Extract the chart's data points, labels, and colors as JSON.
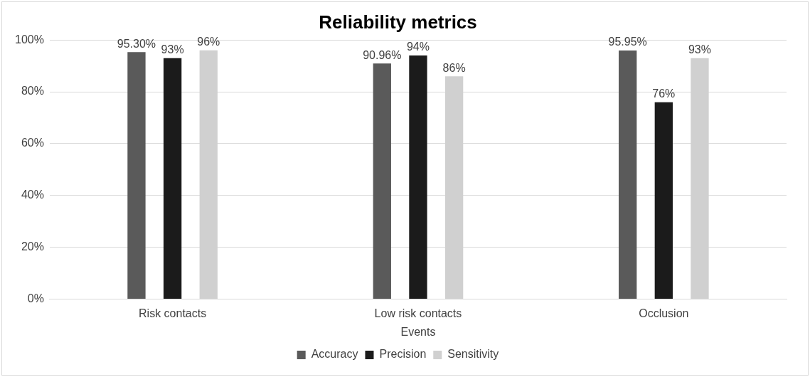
{
  "chart_data": {
    "type": "bar",
    "title": "Reliability metrics",
    "xlabel": "Events",
    "categories": [
      "Risk contacts",
      "Low risk contacts",
      "Occlusion"
    ],
    "series": [
      {
        "name": "Accuracy",
        "color": "#5a5a5a",
        "values": [
          95.3,
          90.96,
          95.95
        ],
        "value_labels": [
          "95.30%",
          "90.96%",
          "95.95%"
        ]
      },
      {
        "name": "Precision",
        "color": "#1b1b1b",
        "values": [
          93,
          94,
          76
        ],
        "value_labels": [
          "93%",
          "94%",
          "76%"
        ]
      },
      {
        "name": "Sensitivity",
        "color": "#d0d0d0",
        "values": [
          96,
          86,
          93
        ],
        "value_labels": [
          "96%",
          "86%",
          "93%"
        ]
      }
    ],
    "ylim": [
      0,
      100
    ],
    "yticks": [
      {
        "value": 0,
        "label": "0%"
      },
      {
        "value": 20,
        "label": "20%"
      },
      {
        "value": 40,
        "label": "40%"
      },
      {
        "value": 60,
        "label": "60%"
      },
      {
        "value": 80,
        "label": "80%"
      },
      {
        "value": 100,
        "label": "100%"
      }
    ],
    "grid": "y",
    "legend": "bottom"
  }
}
